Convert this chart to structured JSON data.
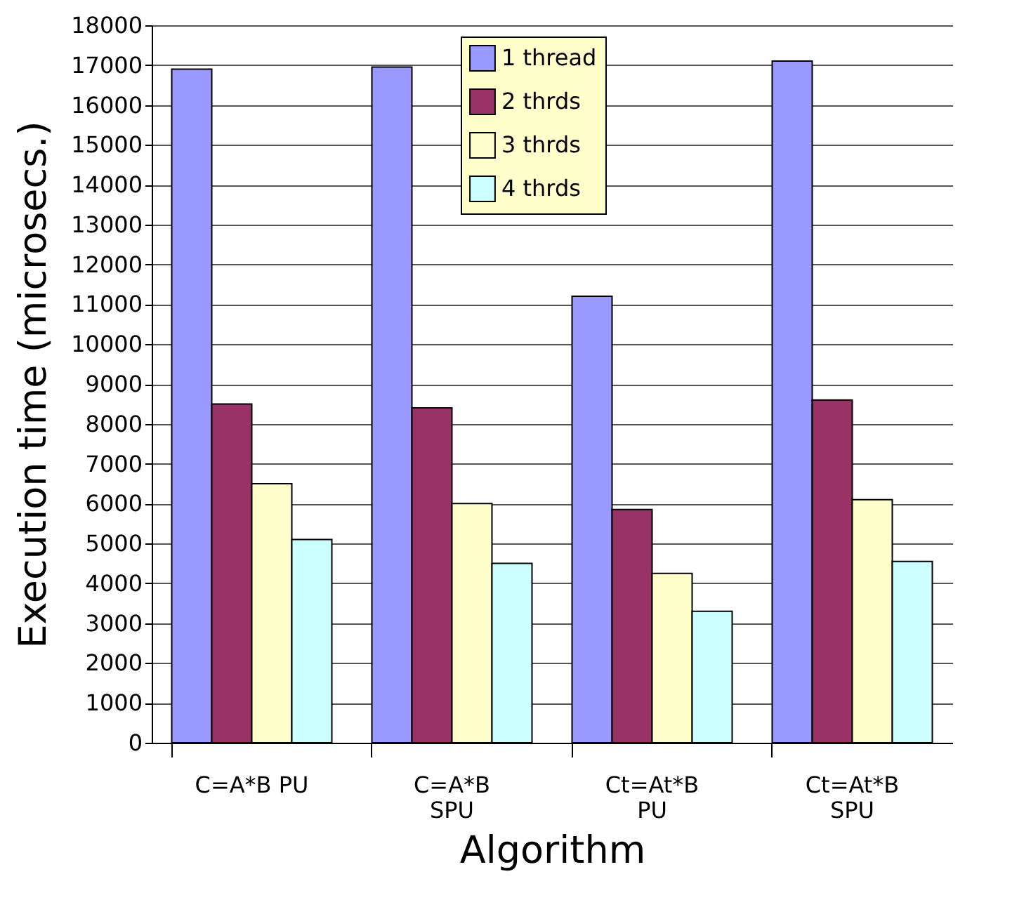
{
  "chart_data": {
    "type": "bar",
    "xlabel": "Algorithm",
    "ylabel": "Execution time (microsecs.)",
    "categories": [
      "C=A*B PU",
      "C=A*B SPU",
      "Ct=At*B PU",
      "Ct=At*B SPU"
    ],
    "series": [
      {
        "name": "1 thread",
        "color": "#9999ff",
        "values": [
          16900,
          16950,
          11200,
          17100
        ]
      },
      {
        "name": "2 thrds",
        "color": "#993366",
        "values": [
          8500,
          8400,
          5850,
          8600
        ]
      },
      {
        "name": "3 thrds",
        "color": "#ffffcc",
        "values": [
          6500,
          6000,
          4250,
          6100
        ]
      },
      {
        "name": "4 thrds",
        "color": "#ccffff",
        "values": [
          5100,
          4500,
          3300,
          4550
        ]
      }
    ],
    "ylim": [
      0,
      18000
    ],
    "yticks": [
      0,
      1000,
      2000,
      3000,
      4000,
      5000,
      6000,
      7000,
      8000,
      9000,
      10000,
      11000,
      12000,
      13000,
      14000,
      15000,
      16000,
      17000,
      18000
    ],
    "grid": "y",
    "legend": "top"
  }
}
